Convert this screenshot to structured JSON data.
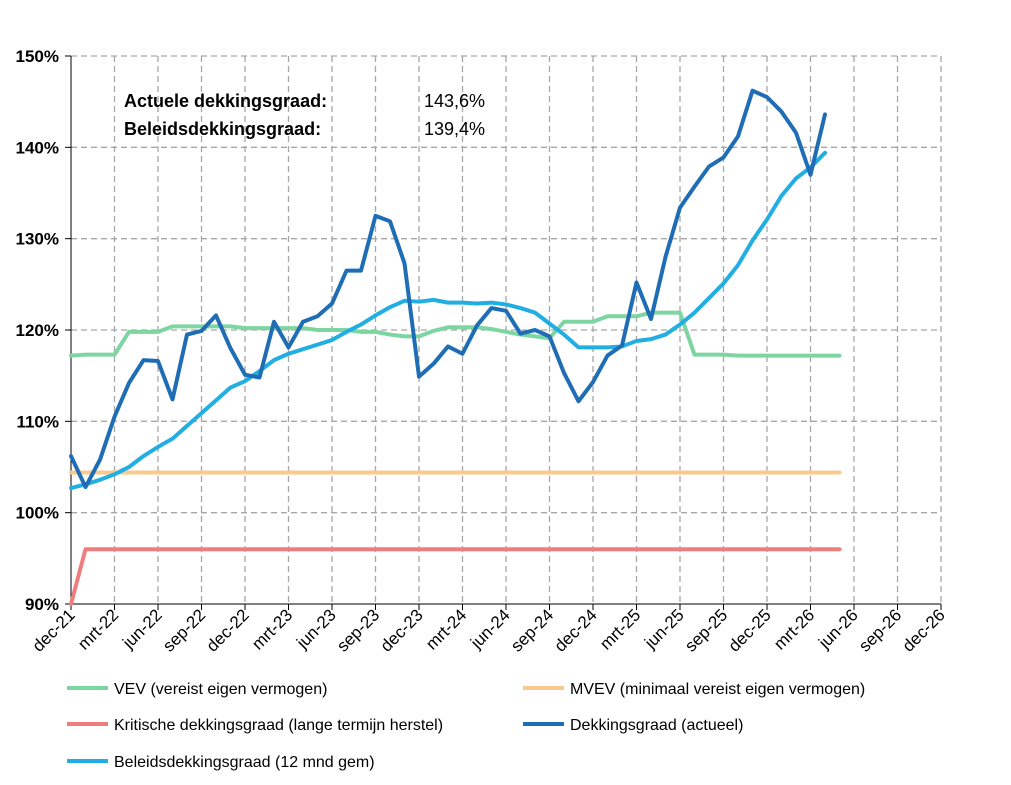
{
  "chart_data": {
    "type": "line",
    "title": "",
    "xlabel": "",
    "ylabel": "",
    "ylim": [
      90,
      150
    ],
    "y_ticks": [
      "90%",
      "100%",
      "110%",
      "120%",
      "130%",
      "140%",
      "150%"
    ],
    "x_tick_labels": [
      "dec-21",
      "mrt-22",
      "jun-22",
      "sep-22",
      "dec-22",
      "mrt-23",
      "jun-23",
      "sep-23",
      "dec-23",
      "mrt-24",
      "jun-24",
      "sep-24",
      "dec-24",
      "mrt-25",
      "jun-25",
      "sep-25",
      "dec-25",
      "mrt-26",
      "jun-26",
      "sep-26",
      "dec-26"
    ],
    "x_start": "dec-21",
    "x_months": 60,
    "grid": true,
    "legend_position": "bottom",
    "annotations": [
      {
        "label": "Actuele dekkingsgraad:",
        "value": "143,6%"
      },
      {
        "label": "Beleidsdekkingsgraad:",
        "value": "139,4%"
      }
    ],
    "series": [
      {
        "name": "VEV (vereist eigen vermogen)",
        "color": "#7dd6a1",
        "values": [
          117.2,
          117.3,
          117.3,
          117.3,
          119.8,
          119.8,
          119.8,
          120.4,
          120.4,
          120.4,
          120.4,
          120.4,
          120.2,
          120.2,
          120.2,
          120.2,
          120.2,
          120.0,
          120.0,
          120.0,
          119.8,
          119.8,
          119.5,
          119.3,
          119.3,
          119.9,
          120.3,
          120.3,
          120.3,
          120.1,
          119.8,
          119.5,
          119.3,
          119.1,
          120.9,
          120.9,
          120.9,
          121.5,
          121.5,
          121.5,
          121.9,
          121.9,
          121.9,
          117.3,
          117.3,
          117.3,
          117.2,
          117.2,
          117.2,
          117.2,
          117.2,
          117.2,
          117.2,
          117.2
        ]
      },
      {
        "name": "MVEV (minimaal vereist eigen vermogen)",
        "color": "#fac98d",
        "values": [
          104.4,
          104.4,
          104.4,
          104.4,
          104.4,
          104.4,
          104.4,
          104.4,
          104.4,
          104.4,
          104.4,
          104.4,
          104.4,
          104.4,
          104.4,
          104.4,
          104.4,
          104.4,
          104.4,
          104.4,
          104.4,
          104.4,
          104.4,
          104.4,
          104.4,
          104.4,
          104.4,
          104.4,
          104.4,
          104.4,
          104.4,
          104.4,
          104.4,
          104.4,
          104.4,
          104.4,
          104.4,
          104.4,
          104.4,
          104.4,
          104.4,
          104.4,
          104.4,
          104.4,
          104.4,
          104.4,
          104.4,
          104.4,
          104.4,
          104.4,
          104.4,
          104.4,
          104.4,
          104.4
        ]
      },
      {
        "name": "Kritische dekkingsgraad (lange termijn herstel)",
        "color": "#f07d7d",
        "values": [
          90.0,
          96.0,
          96.0,
          96.0,
          96.0,
          96.0,
          96.0,
          96.0,
          96.0,
          96.0,
          96.0,
          96.0,
          96.0,
          96.0,
          96.0,
          96.0,
          96.0,
          96.0,
          96.0,
          96.0,
          96.0,
          96.0,
          96.0,
          96.0,
          96.0,
          96.0,
          96.0,
          96.0,
          96.0,
          96.0,
          96.0,
          96.0,
          96.0,
          96.0,
          96.0,
          96.0,
          96.0,
          96.0,
          96.0,
          96.0,
          96.0,
          96.0,
          96.0,
          96.0,
          96.0,
          96.0,
          96.0,
          96.0,
          96.0,
          96.0,
          96.0,
          96.0,
          96.0,
          96.0
        ]
      },
      {
        "name": "Dekkingsgraad (actueel)",
        "color": "#1f6eb5",
        "values": [
          106.2,
          102.8,
          105.8,
          110.5,
          114.2,
          116.7,
          116.6,
          112.4,
          119.5,
          119.9,
          121.6,
          118.0,
          115.1,
          114.8,
          120.9,
          118.1,
          120.9,
          121.5,
          122.9,
          126.5,
          126.5,
          132.5,
          131.9,
          127.3,
          114.9,
          116.3,
          118.2,
          117.4,
          120.5,
          122.4,
          122.1,
          119.6,
          120.0,
          119.3,
          115.3,
          112.2,
          114.3,
          117.2,
          118.3,
          125.2,
          121.2,
          128.0,
          133.4,
          135.7,
          137.9,
          138.9,
          141.2,
          146.2,
          145.5,
          143.9,
          141.6,
          137.0,
          143.6
        ]
      },
      {
        "name": "Beleidsdekkingsgraad (12 mnd gem)",
        "color": "#20aee3",
        "values": [
          102.7,
          103.1,
          103.6,
          104.2,
          105.0,
          106.2,
          107.2,
          108.1,
          109.5,
          110.9,
          112.3,
          113.7,
          114.4,
          115.5,
          116.7,
          117.4,
          117.9,
          118.4,
          118.9,
          119.8,
          120.6,
          121.6,
          122.5,
          123.2,
          123.1,
          123.3,
          123.0,
          123.0,
          122.9,
          123.0,
          122.8,
          122.4,
          121.9,
          120.7,
          119.5,
          118.1,
          118.1,
          118.1,
          118.2,
          118.8,
          119.0,
          119.5,
          120.6,
          121.9,
          123.5,
          125.1,
          127.1,
          129.8,
          132.1,
          134.7,
          136.6,
          137.8,
          139.4
        ]
      }
    ]
  }
}
